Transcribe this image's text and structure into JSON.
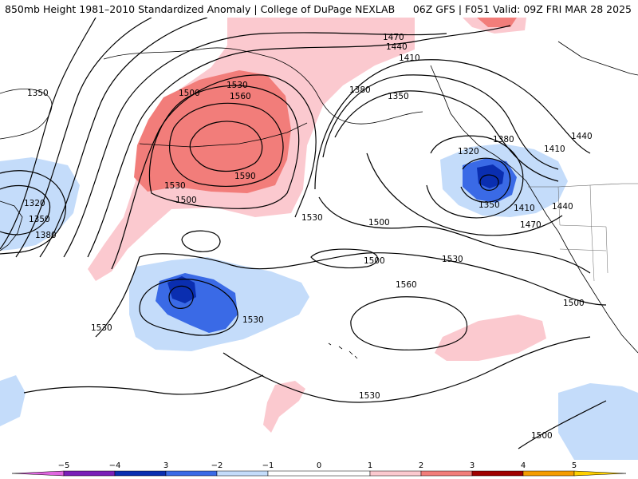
{
  "header": {
    "title_left": "850mb Height 1981–2010 Standardized Anomaly | College of DuPage NEXLAB",
    "title_right": "06Z GFS | F051 Valid: 09Z FRI MAR 28 2025"
  },
  "colors": {
    "neg5": "#e066e0",
    "neg4": "#7a1fb8",
    "neg3": "#0a2eb0",
    "neg2": "#3a6ae6",
    "neg1": "#c4dcfa",
    "zero": "#ffffff",
    "pos1": "#fbc9cf",
    "pos2": "#f27d7a",
    "pos3": "#d01818",
    "pos4": "#a00000",
    "pos5": "#f59c00",
    "pos6": "#ffd000"
  },
  "contour_labels": [
    {
      "id": "a",
      "text": "1350"
    },
    {
      "id": "b",
      "text": "1320"
    },
    {
      "id": "c",
      "text": "1350"
    },
    {
      "id": "d",
      "text": "1380"
    },
    {
      "id": "e",
      "text": "1500"
    },
    {
      "id": "f",
      "text": "1530"
    },
    {
      "id": "g",
      "text": "1560"
    },
    {
      "id": "h",
      "text": "1590"
    },
    {
      "id": "i",
      "text": "1530"
    },
    {
      "id": "j",
      "text": "1500"
    },
    {
      "id": "k",
      "text": "1530"
    },
    {
      "id": "l",
      "text": "1470"
    },
    {
      "id": "m",
      "text": "1440"
    },
    {
      "id": "n",
      "text": "1410"
    },
    {
      "id": "o",
      "text": "1380"
    },
    {
      "id": "p",
      "text": "1350"
    },
    {
      "id": "q",
      "text": "1320"
    },
    {
      "id": "r",
      "text": "1380"
    },
    {
      "id": "s",
      "text": "1410"
    },
    {
      "id": "t",
      "text": "1440"
    },
    {
      "id": "u",
      "text": "1350"
    },
    {
      "id": "v",
      "text": "1410"
    },
    {
      "id": "w",
      "text": "1440"
    },
    {
      "id": "x",
      "text": "1470"
    },
    {
      "id": "y",
      "text": "1500"
    },
    {
      "id": "z",
      "text": "1500"
    },
    {
      "id": "aa",
      "text": "1530"
    },
    {
      "id": "ab",
      "text": "1560"
    },
    {
      "id": "ac",
      "text": "1530"
    },
    {
      "id": "ad",
      "text": "1530"
    },
    {
      "id": "ae",
      "text": "1530"
    },
    {
      "id": "af",
      "text": "1500"
    },
    {
      "id": "ag",
      "text": "1500"
    }
  ],
  "colorbar": {
    "ticks": [
      "−5",
      "−4",
      "3",
      "−2",
      "−1",
      "0",
      "1",
      "2",
      "3",
      "4",
      "5"
    ]
  }
}
